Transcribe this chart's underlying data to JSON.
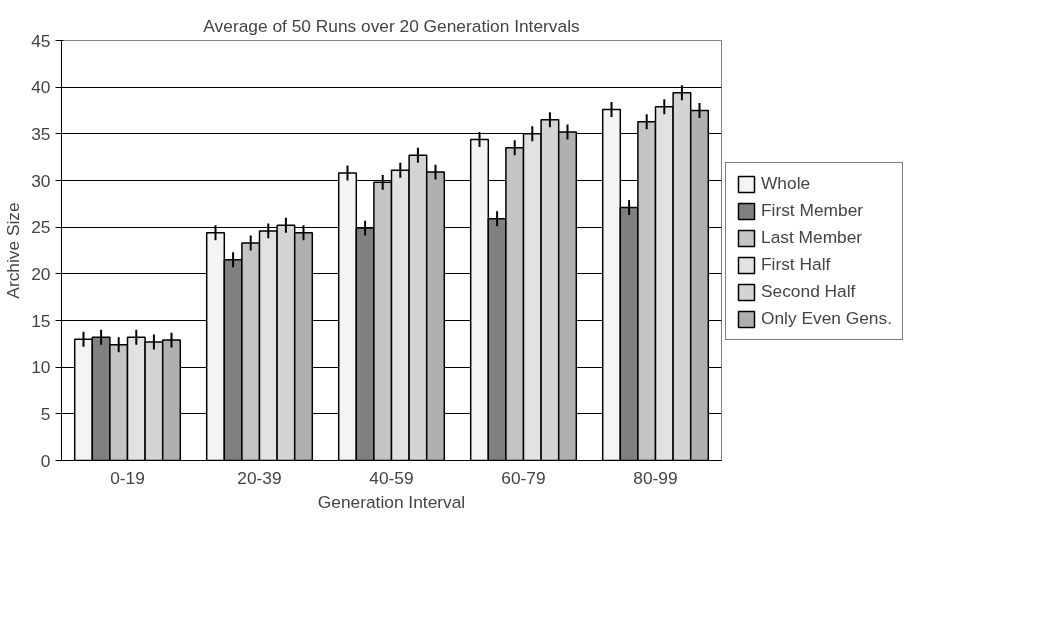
{
  "chart_data": {
    "type": "bar",
    "title": "Average of 50 Runs over 20 Generation Intervals",
    "xlabel": "Generation Interval",
    "ylabel": "Archive Size",
    "categories": [
      "0-19",
      "20-39",
      "40-59",
      "60-79",
      "80-99"
    ],
    "series": [
      {
        "name": "Whole",
        "color": "#f4f4f4",
        "values": [
          13.0,
          24.4,
          30.8,
          34.4,
          37.6
        ],
        "errors": [
          0.8,
          0.8,
          0.8,
          0.8,
          0.8
        ]
      },
      {
        "name": "First Member",
        "color": "#808080",
        "values": [
          13.2,
          21.5,
          24.9,
          25.9,
          27.1
        ],
        "errors": [
          0.8,
          0.8,
          0.8,
          0.8,
          0.8
        ]
      },
      {
        "name": "Last Member",
        "color": "#c4c4c4",
        "values": [
          12.4,
          23.3,
          29.8,
          33.5,
          36.3
        ],
        "errors": [
          0.8,
          0.8,
          0.8,
          0.8,
          0.8
        ]
      },
      {
        "name": "First Half",
        "color": "#e2e2e2",
        "values": [
          13.2,
          24.6,
          31.1,
          35.0,
          37.9
        ],
        "errors": [
          0.8,
          0.8,
          0.8,
          0.8,
          0.8
        ]
      },
      {
        "name": "Second Half",
        "color": "#d4d4d4",
        "values": [
          12.7,
          25.2,
          32.7,
          36.5,
          39.4
        ],
        "errors": [
          0.8,
          0.8,
          0.8,
          0.8,
          0.8
        ]
      },
      {
        "name": "Only Even Gens.",
        "color": "#b0b0b0",
        "values": [
          12.9,
          24.4,
          30.9,
          35.2,
          37.5
        ],
        "errors": [
          0.8,
          0.8,
          0.8,
          0.8,
          0.8
        ]
      }
    ],
    "ylim": [
      0,
      45
    ],
    "yticks": [
      0,
      5,
      10,
      15,
      20,
      25,
      30,
      35,
      40,
      45
    ],
    "grid": "y",
    "legend": "right"
  }
}
